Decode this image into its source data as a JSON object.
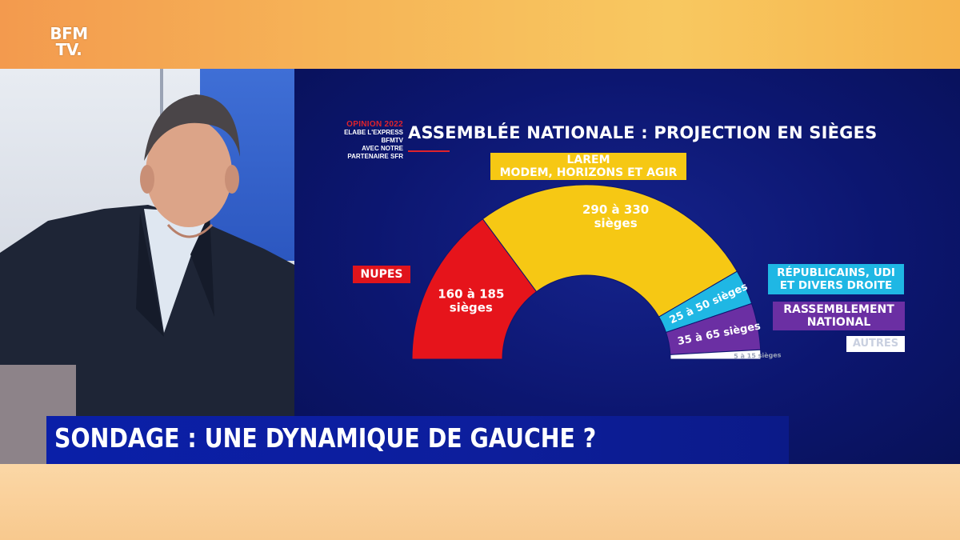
{
  "channel": {
    "logo_line1": "BFM",
    "logo_line2": "TV."
  },
  "opinion": {
    "line1": "OPINION 2022",
    "line2": "ELABE L'EXPRESS BFMTV",
    "line3": "AVEC NOTRE PARTENAIRE SFR"
  },
  "ticker": {
    "headline": "SONDAGE : UNE DYNAMIQUE DE GAUCHE ?"
  },
  "chart_data": {
    "type": "pie",
    "subtype": "hemicycle",
    "title": "ASSEMBLÉE NATIONALE : PROJECTION EN SIÈGES",
    "segments": [
      {
        "key": "nupes",
        "legend": "NUPES",
        "min": 160,
        "max": 185,
        "label_line1": "160 à 185",
        "label_line2": "sièges",
        "color": "#e6141b"
      },
      {
        "key": "larem",
        "legend_line1": "LAREM",
        "legend_line2": "MODEM, HORIZONS ET AGIR",
        "min": 290,
        "max": 330,
        "label_line1": "290 à 330",
        "label_line2": "sièges",
        "color": "#f6c814"
      },
      {
        "key": "lr",
        "legend_line1": "RÉPUBLICAINS, UDI",
        "legend_line2": "ET DIVERS DROITE",
        "min": 25,
        "max": 50,
        "label_line1": "25 à 50 sièges",
        "color": "#1fb7e4"
      },
      {
        "key": "rn",
        "legend_line1": "RASSEMBLEMENT",
        "legend_line2": "NATIONAL",
        "min": 35,
        "max": 65,
        "label_line1": "35 à 65 sièges",
        "color": "#6b2fa3"
      },
      {
        "key": "autres",
        "legend": "AUTRES",
        "min": 5,
        "max": 15,
        "label_line1": "5 à 15 sièges",
        "color": "#ffffff"
      }
    ]
  }
}
